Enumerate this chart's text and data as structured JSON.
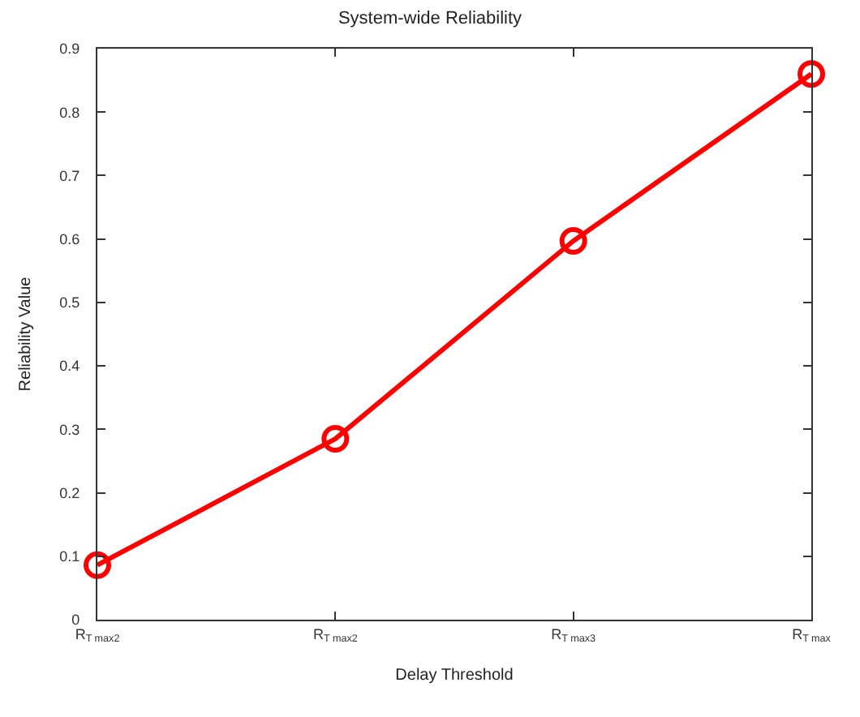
{
  "chart_data": {
    "type": "line",
    "title": "System-wide Reliability",
    "xlabel": "Delay Threshold",
    "ylabel": "Reliability Value",
    "categories": [
      "R$_{T max2}$",
      "R$_{T max2}$",
      "R$_{T max3}$",
      "R$_{T max}$"
    ],
    "series": [
      {
        "color": "#ff0000",
        "values": [
          0.086,
          0.285,
          0.597,
          0.86
        ]
      }
    ],
    "ylim": [
      0,
      0.9
    ],
    "yticks": [
      0,
      0.1,
      0.2,
      0.3,
      0.4,
      0.5,
      0.6,
      0.7,
      0.8,
      0.9
    ],
    "marker": "circle",
    "line_style": "solid"
  }
}
